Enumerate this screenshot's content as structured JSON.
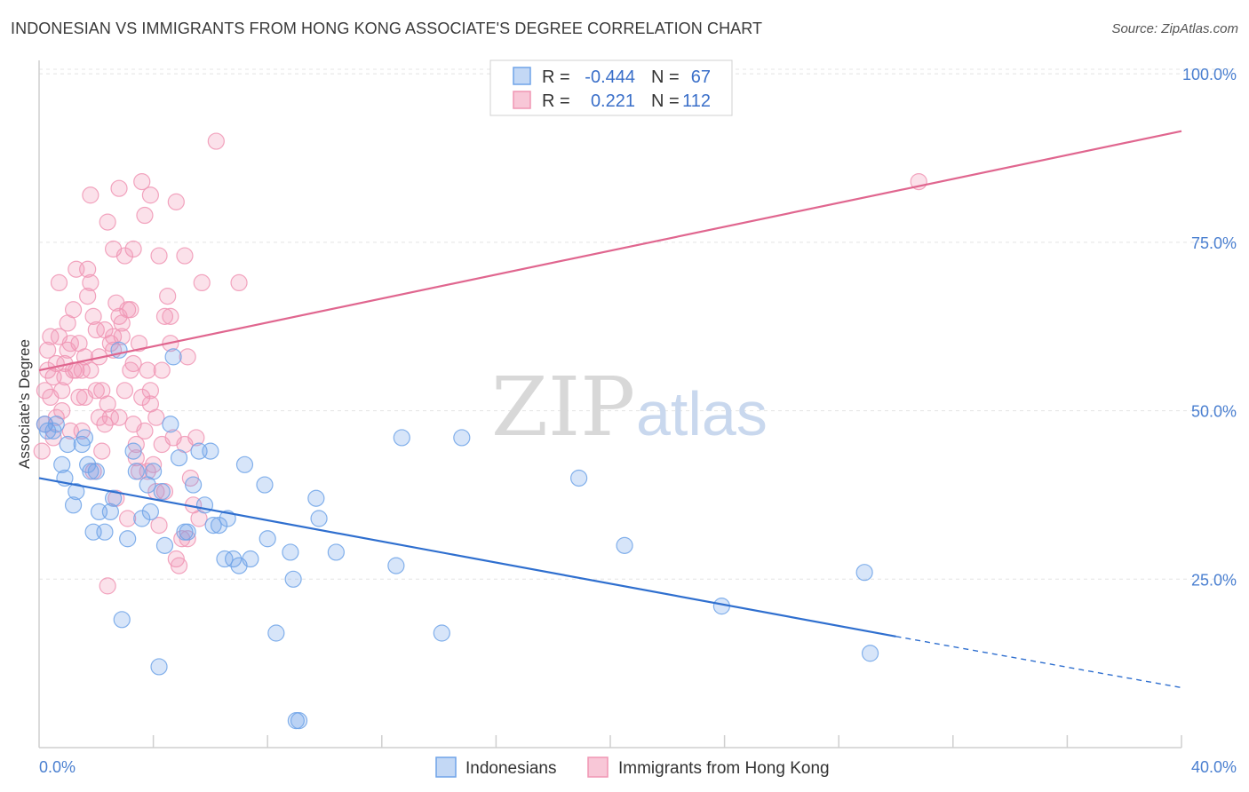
{
  "title": "INDONESIAN VS IMMIGRANTS FROM HONG KONG ASSOCIATE'S DEGREE CORRELATION CHART",
  "source": "Source: ZipAtlas.com",
  "watermark": {
    "zip": "ZIP",
    "atlas": "atlas"
  },
  "colors": {
    "blue": "#6fa3e8",
    "blue_line": "#2f6fcf",
    "pink": "#f095b4",
    "pink_line": "#e0668f"
  },
  "legend": {
    "rows": [
      {
        "r_label": "R =",
        "r_value": "-0.444",
        "n_label": "N =",
        "n_value": "67"
      },
      {
        "r_label": "R =",
        "r_value": "0.221",
        "n_label": "N =",
        "n_value": "112"
      }
    ]
  },
  "chart_data": {
    "type": "scatter",
    "title": "INDONESIAN VS IMMIGRANTS FROM HONG KONG ASSOCIATE'S DEGREE CORRELATION CHART",
    "xlabel": "",
    "ylabel": "Associate's Degree",
    "xlim": [
      0,
      40
    ],
    "ylim": [
      0,
      102
    ],
    "x_tick_labels": [
      "0.0%",
      "40.0%"
    ],
    "y_ticks": [
      {
        "value": 25,
        "label": "25.0%"
      },
      {
        "value": 50,
        "label": "50.0%"
      },
      {
        "value": 75,
        "label": "75.0%"
      },
      {
        "value": 100,
        "label": "100.0%"
      }
    ],
    "grid": true,
    "series": [
      {
        "name": "Indonesians",
        "trend": {
          "x0": 0,
          "y0": 40.0,
          "x1": 30.0,
          "y1": 16.5,
          "dash_to_x": 40,
          "dash_to_y": 8.9
        },
        "points": [
          [
            0.2,
            48
          ],
          [
            0.3,
            47
          ],
          [
            0.5,
            47
          ],
          [
            0.6,
            48
          ],
          [
            0.8,
            42
          ],
          [
            0.9,
            40
          ],
          [
            1.0,
            45
          ],
          [
            1.2,
            36
          ],
          [
            1.3,
            38
          ],
          [
            1.5,
            45
          ],
          [
            1.7,
            42
          ],
          [
            1.8,
            41
          ],
          [
            1.9,
            32
          ],
          [
            2.1,
            35
          ],
          [
            2.3,
            32
          ],
          [
            2.5,
            35
          ],
          [
            2.6,
            37
          ],
          [
            2.8,
            59
          ],
          [
            2.9,
            19
          ],
          [
            3.1,
            31
          ],
          [
            3.3,
            44
          ],
          [
            3.4,
            41
          ],
          [
            3.6,
            34
          ],
          [
            3.8,
            39
          ],
          [
            3.9,
            35
          ],
          [
            4.0,
            41
          ],
          [
            4.2,
            12
          ],
          [
            4.3,
            38
          ],
          [
            4.4,
            30
          ],
          [
            4.6,
            48
          ],
          [
            4.7,
            58
          ],
          [
            4.9,
            43
          ],
          [
            5.1,
            32
          ],
          [
            5.2,
            32
          ],
          [
            5.4,
            39
          ],
          [
            5.6,
            44
          ],
          [
            5.8,
            36
          ],
          [
            6.0,
            44
          ],
          [
            6.1,
            33
          ],
          [
            6.3,
            33
          ],
          [
            6.5,
            28
          ],
          [
            6.6,
            34
          ],
          [
            6.8,
            28
          ],
          [
            7.0,
            27
          ],
          [
            7.2,
            42
          ],
          [
            7.4,
            28
          ],
          [
            7.9,
            39
          ],
          [
            8.0,
            31
          ],
          [
            8.3,
            17
          ],
          [
            8.8,
            29
          ],
          [
            8.9,
            25
          ],
          [
            9.0,
            4
          ],
          [
            9.1,
            4
          ],
          [
            9.7,
            37
          ],
          [
            9.8,
            34
          ],
          [
            10.4,
            29
          ],
          [
            12.5,
            27
          ],
          [
            12.7,
            46
          ],
          [
            14.1,
            17
          ],
          [
            14.8,
            46
          ],
          [
            18.9,
            40
          ],
          [
            20.5,
            30
          ],
          [
            23.9,
            21
          ],
          [
            28.9,
            26
          ],
          [
            29.1,
            14
          ],
          [
            1.6,
            46
          ],
          [
            2.0,
            41
          ]
        ]
      },
      {
        "name": "Immigrants from Hong Kong",
        "trend": {
          "x0": 0,
          "y0": 56.0,
          "x1": 40,
          "y1": 91.5
        },
        "points": [
          [
            0.1,
            44
          ],
          [
            0.2,
            48
          ],
          [
            0.3,
            56
          ],
          [
            0.4,
            61
          ],
          [
            0.5,
            55
          ],
          [
            0.6,
            49
          ],
          [
            0.7,
            61
          ],
          [
            0.8,
            53
          ],
          [
            0.9,
            57
          ],
          [
            1.0,
            63
          ],
          [
            1.1,
            60
          ],
          [
            1.2,
            65
          ],
          [
            1.3,
            56
          ],
          [
            1.4,
            52
          ],
          [
            1.5,
            47
          ],
          [
            1.6,
            58
          ],
          [
            1.7,
            71
          ],
          [
            1.8,
            69
          ],
          [
            1.9,
            64
          ],
          [
            2.0,
            62
          ],
          [
            2.1,
            58
          ],
          [
            2.2,
            53
          ],
          [
            2.3,
            48
          ],
          [
            2.4,
            51
          ],
          [
            2.5,
            60
          ],
          [
            2.6,
            74
          ],
          [
            2.7,
            66
          ],
          [
            2.8,
            64
          ],
          [
            2.9,
            61
          ],
          [
            3.0,
            73
          ],
          [
            3.1,
            65
          ],
          [
            3.2,
            56
          ],
          [
            3.3,
            48
          ],
          [
            3.4,
            45
          ],
          [
            3.5,
            41
          ],
          [
            3.6,
            52
          ],
          [
            3.7,
            47
          ],
          [
            3.8,
            56
          ],
          [
            3.9,
            53
          ],
          [
            4.0,
            42
          ],
          [
            4.1,
            38
          ],
          [
            4.2,
            33
          ],
          [
            4.3,
            56
          ],
          [
            4.4,
            64
          ],
          [
            4.5,
            67
          ],
          [
            4.6,
            60
          ],
          [
            4.7,
            46
          ],
          [
            4.8,
            28
          ],
          [
            4.9,
            27
          ],
          [
            5.0,
            31
          ],
          [
            5.1,
            45
          ],
          [
            5.2,
            31
          ],
          [
            5.3,
            40
          ],
          [
            5.4,
            36
          ],
          [
            5.5,
            46
          ],
          [
            5.6,
            34
          ],
          [
            5.7,
            69
          ],
          [
            6.2,
            90
          ],
          [
            7.0,
            69
          ],
          [
            1.8,
            82
          ],
          [
            2.4,
            78
          ],
          [
            2.8,
            83
          ],
          [
            3.3,
            74
          ],
          [
            3.6,
            84
          ],
          [
            3.7,
            79
          ],
          [
            3.9,
            82
          ],
          [
            4.2,
            73
          ],
          [
            4.8,
            81
          ],
          [
            5.1,
            73
          ],
          [
            3.2,
            65
          ],
          [
            2.6,
            59
          ],
          [
            1.4,
            60
          ],
          [
            1.2,
            56
          ],
          [
            0.9,
            55
          ],
          [
            0.6,
            57
          ],
          [
            0.4,
            52
          ],
          [
            0.3,
            59
          ],
          [
            1.6,
            52
          ],
          [
            2.1,
            49
          ],
          [
            2.5,
            49
          ],
          [
            3.0,
            53
          ],
          [
            3.4,
            43
          ],
          [
            3.8,
            41
          ],
          [
            4.1,
            49
          ],
          [
            4.4,
            38
          ],
          [
            2.2,
            44
          ],
          [
            1.1,
            47
          ],
          [
            0.8,
            50
          ],
          [
            0.5,
            46
          ],
          [
            1.9,
            41
          ],
          [
            2.7,
            37
          ],
          [
            3.1,
            34
          ],
          [
            2.4,
            24
          ],
          [
            2.3,
            62
          ],
          [
            1.7,
            67
          ],
          [
            2.9,
            63
          ],
          [
            3.5,
            60
          ],
          [
            4.6,
            64
          ],
          [
            1.5,
            56
          ],
          [
            1.3,
            71
          ],
          [
            0.7,
            69
          ],
          [
            2.0,
            53
          ],
          [
            2.8,
            49
          ],
          [
            3.9,
            51
          ],
          [
            0.2,
            53
          ],
          [
            1.0,
            59
          ],
          [
            1.8,
            56
          ],
          [
            2.6,
            61
          ],
          [
            3.3,
            57
          ],
          [
            4.3,
            45
          ],
          [
            30.8,
            84
          ],
          [
            5.2,
            58
          ]
        ]
      }
    ]
  },
  "bottom_legend": [
    "Indonesians",
    "Immigrants from Hong Kong"
  ]
}
